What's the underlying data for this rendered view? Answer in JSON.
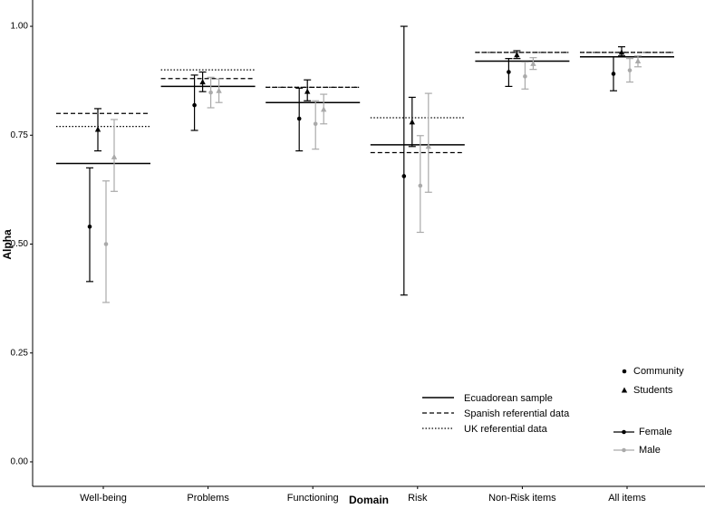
{
  "chart_data": {
    "type": "errorbar",
    "x_label": "Domain",
    "y_label": "Alpha",
    "categories": [
      "Well-being",
      "Problems",
      "Functioning",
      "Risk",
      "Non-Risk items",
      "All items"
    ],
    "ylim": [
      -0.05,
      1.05
    ],
    "yticks": [
      {
        "value": 0,
        "label": "0.00"
      },
      {
        "value": 0.25,
        "label": "0.25"
      },
      {
        "value": 0.5,
        "label": "0.50"
      },
      {
        "value": 0.75,
        "label": "0.75"
      },
      {
        "value": 1,
        "label": "1.00"
      }
    ],
    "grid": false,
    "reference_lines": [
      {
        "name": "Ecuadorean sample",
        "dash": "solid",
        "color": "#000000",
        "values": [
          0.685,
          0.862,
          0.825,
          0.728,
          0.92,
          0.93
        ]
      },
      {
        "name": "Spanish referential data",
        "dash": "dashed",
        "color": "#000000",
        "values": [
          0.8,
          0.88,
          0.86,
          0.71,
          0.94,
          0.94
        ]
      },
      {
        "name": "UK referential data",
        "dash": "dotted",
        "color": "#000000",
        "values": [
          0.77,
          0.9,
          0.86,
          0.79,
          0.94,
          0.94
        ]
      }
    ],
    "markers": [
      {
        "name": "Community",
        "shape": "circle"
      },
      {
        "name": "Students",
        "shape": "triangle"
      }
    ],
    "series": [
      {
        "name": "Female",
        "color": "#000000",
        "groups": [
          {
            "values": [
              0.54,
              0.819,
              0.788,
              0.656,
              0.895,
              0.891
            ],
            "lower": [
              0.414,
              0.761,
              0.714,
              0.383,
              0.862,
              0.852
            ],
            "upper": [
              0.675,
              0.888,
              0.858,
              1.0,
              0.926,
              0.93
            ]
          },
          {
            "values": [
              0.763,
              0.872,
              0.85,
              0.78,
              0.934,
              0.94
            ],
            "lower": [
              0.714,
              0.85,
              0.829,
              0.724,
              0.926,
              0.932
            ],
            "upper": [
              0.811,
              0.895,
              0.877,
              0.837,
              0.944,
              0.953
            ]
          }
        ]
      },
      {
        "name": "Male",
        "color": "#aaaaaa",
        "groups": [
          {
            "values": [
              0.5,
              0.848,
              0.776,
              0.634,
              0.885,
              0.899
            ],
            "lower": [
              0.366,
              0.813,
              0.718,
              0.527,
              0.856,
              0.872
            ],
            "upper": [
              0.645,
              0.883,
              0.829,
              0.749,
              0.918,
              0.926
            ]
          },
          {
            "values": [
              0.7,
              0.852,
              0.809,
              0.724,
              0.914,
              0.92
            ],
            "lower": [
              0.621,
              0.825,
              0.776,
              0.619,
              0.901,
              0.907
            ],
            "upper": [
              0.786,
              0.879,
              0.844,
              0.846,
              0.928,
              0.932
            ]
          }
        ]
      }
    ]
  }
}
